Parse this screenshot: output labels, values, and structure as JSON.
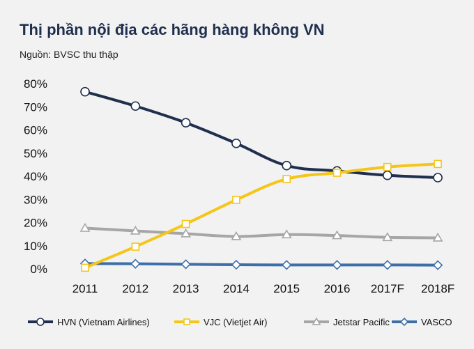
{
  "chart_data": {
    "type": "line",
    "title": "Thị phần nội địa các hãng hàng không VN",
    "subtitle": "Nguồn: BVSC thu thập",
    "categories": [
      "2011",
      "2012",
      "2013",
      "2014",
      "2015",
      "2016",
      "2017F",
      "2018F"
    ],
    "y_ticks": [
      "0%",
      "10%",
      "20%",
      "30%",
      "40%",
      "50%",
      "60%",
      "70%",
      "80%"
    ],
    "ylim": [
      0,
      80
    ],
    "y_unit": "%",
    "grid": false,
    "legend_position": "bottom",
    "series": [
      {
        "name": "HVN (Vietnam Airlines)",
        "values": [
          76.5,
          70.3,
          63.1,
          54.2,
          44.6,
          42.3,
          40.4,
          39.4
        ],
        "color": "#1f2f4d",
        "marker": "circle"
      },
      {
        "name": "VJC (Vietjet Air)",
        "values": [
          0.5,
          9.6,
          19.4,
          29.8,
          38.8,
          41.5,
          44.0,
          45.3
        ],
        "color": "#f5c518",
        "marker": "square"
      },
      {
        "name": "Jetstar Pacific",
        "values": [
          17.6,
          16.4,
          15.2,
          14.0,
          14.8,
          14.4,
          13.6,
          13.4
        ],
        "color": "#a6a6a6",
        "marker": "triangle"
      },
      {
        "name": "VASCO",
        "values": [
          2.3,
          2.2,
          2.0,
          1.8,
          1.7,
          1.7,
          1.7,
          1.6
        ],
        "color": "#3d6ea8",
        "marker": "diamond"
      }
    ]
  }
}
